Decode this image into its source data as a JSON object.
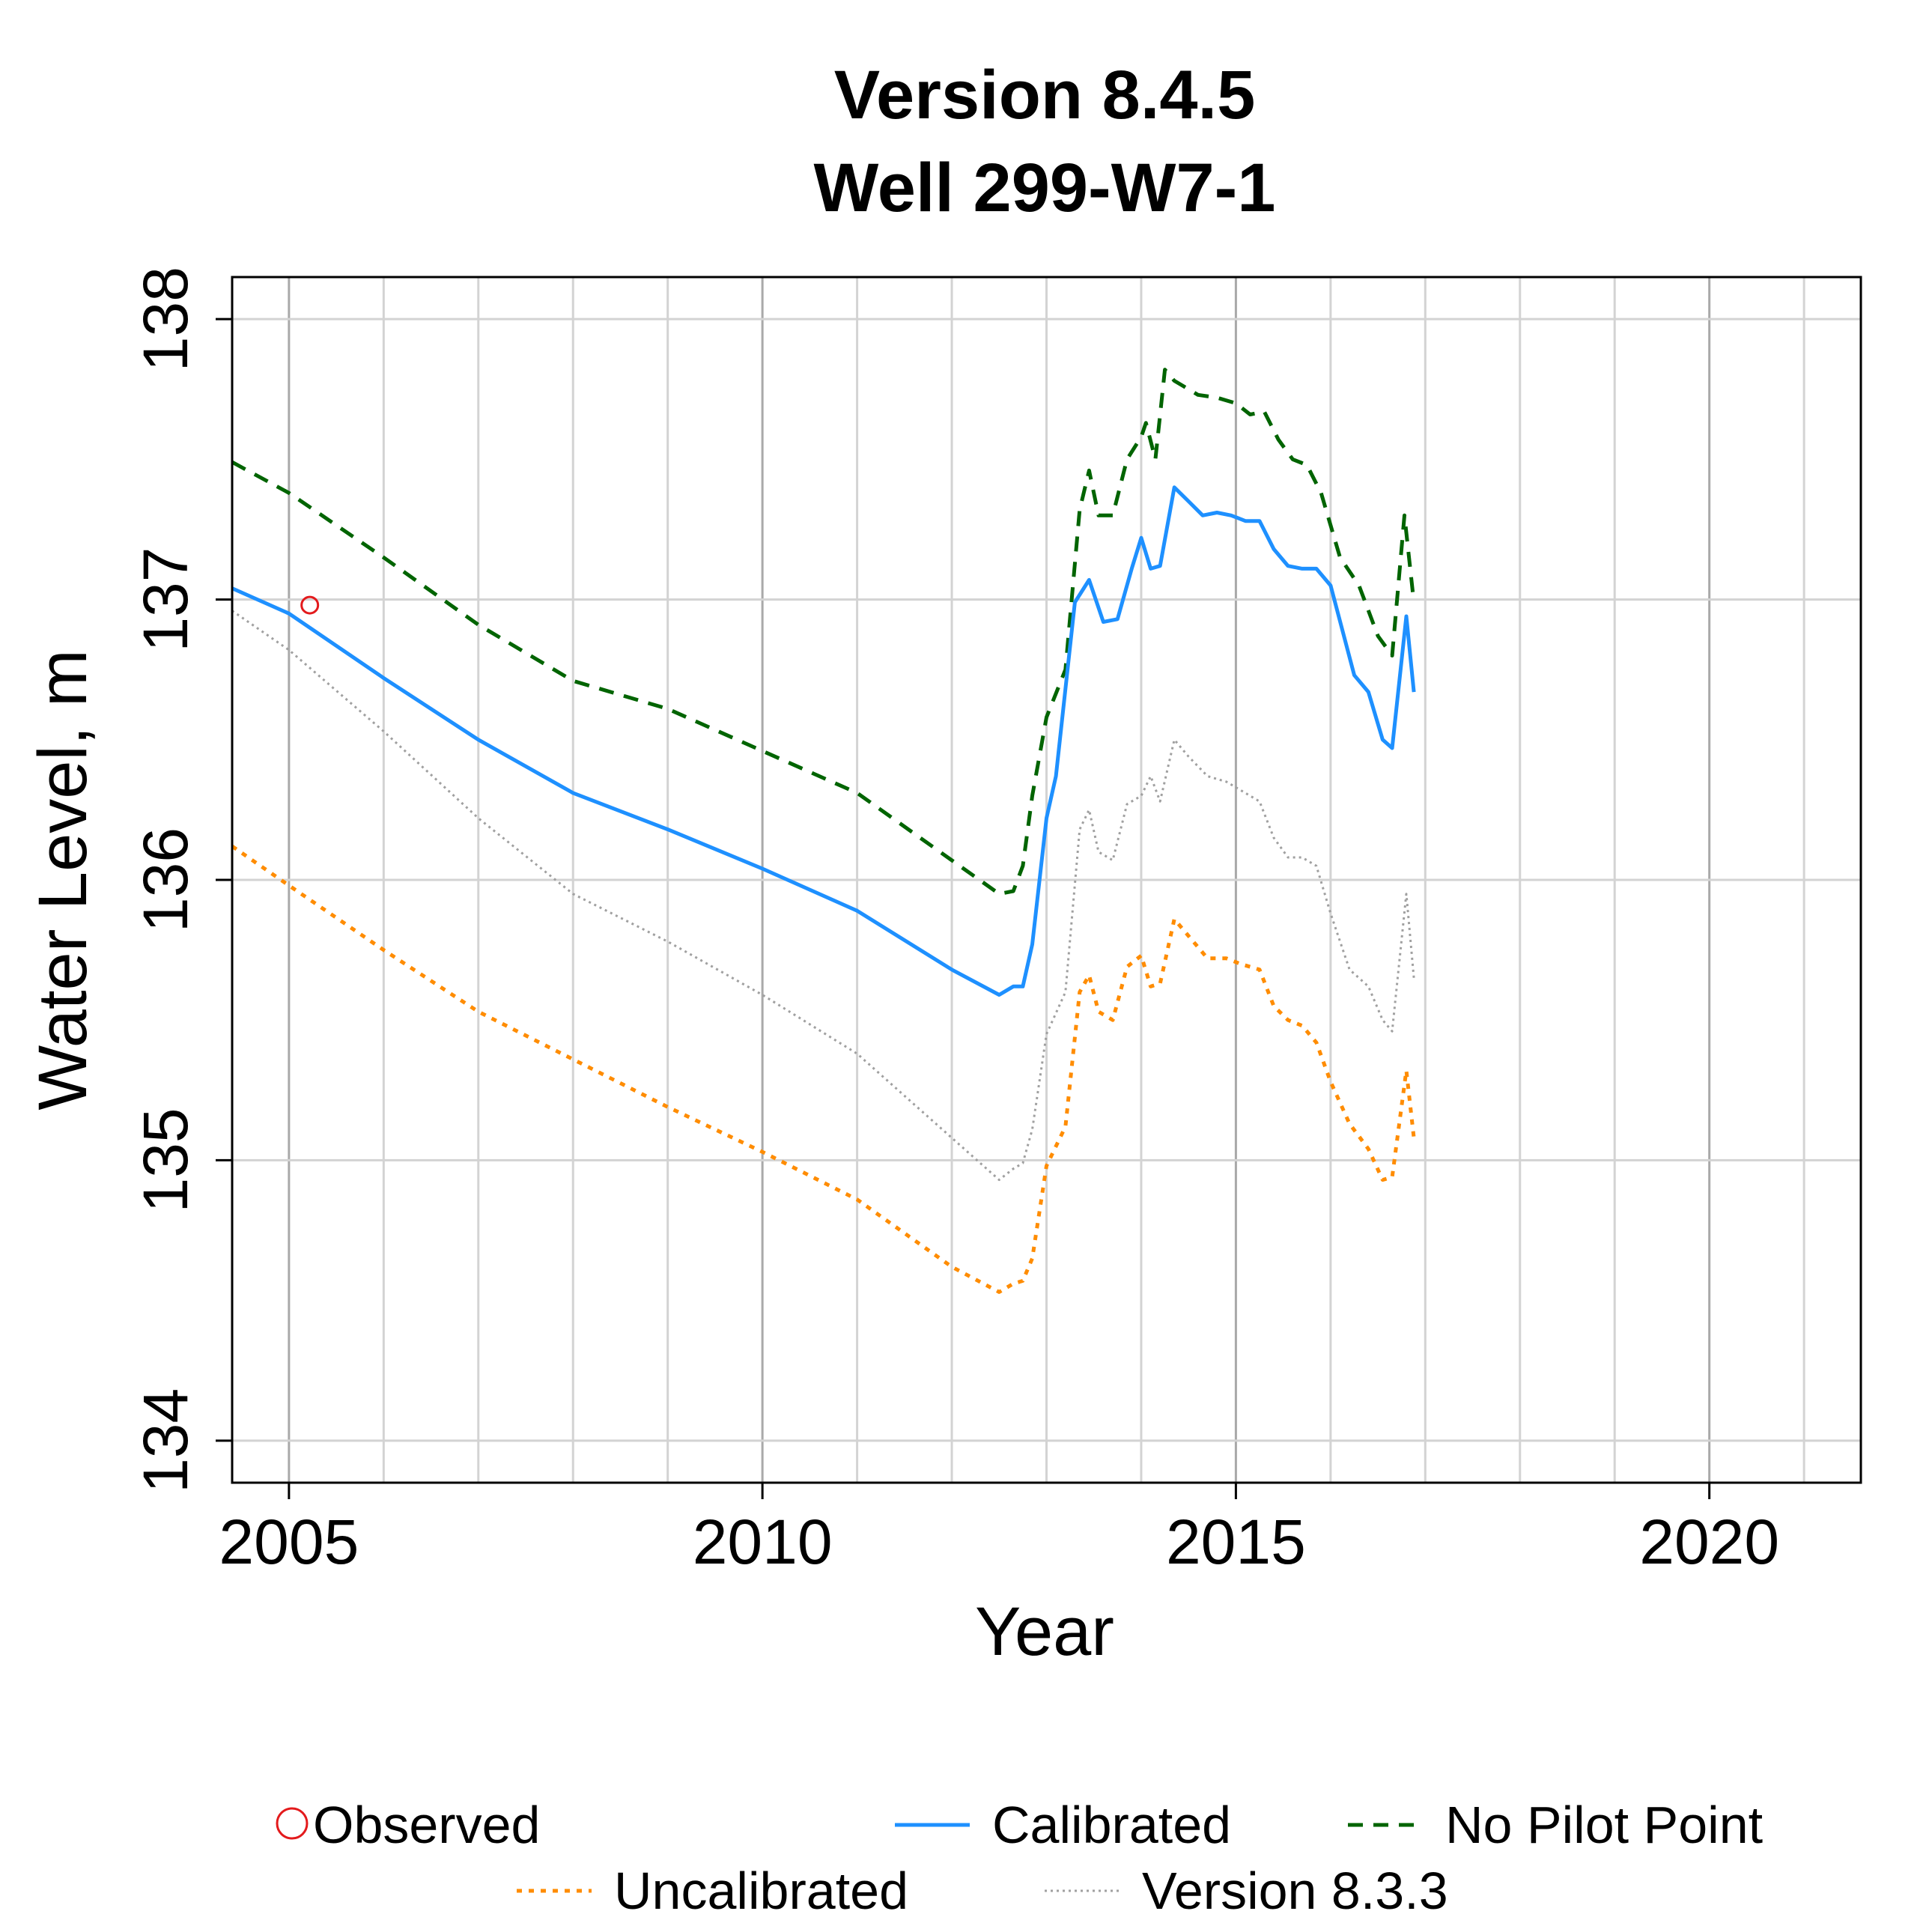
{
  "chart_data": {
    "type": "line",
    "title": "Version 8.4.5",
    "subtitle": "Well 299-W7-1",
    "xlabel": "Year",
    "ylabel": "Water Level, m",
    "xlim": [
      2004.4,
      2021.6
    ],
    "ylim": [
      133.85,
      138.15
    ],
    "x_ticks": [
      2005,
      2010,
      2015,
      2020
    ],
    "x_tick_labels": [
      "2005",
      "2010",
      "2015",
      "2020"
    ],
    "y_ticks": [
      134,
      135,
      136,
      137,
      138
    ],
    "y_tick_labels": [
      "134",
      "135",
      "136",
      "137",
      "138"
    ],
    "x_minor_grid": [
      2006,
      2007,
      2008,
      2009,
      2011,
      2012,
      2013,
      2014,
      2016,
      2017,
      2018,
      2019,
      2021
    ],
    "grid": true,
    "legend_position": "bottom",
    "colors": {
      "observed": "#e31a1c",
      "calibrated": "#1e90ff",
      "no_pilot_point": "#006400",
      "uncalibrated": "#ff8c00",
      "version_833": "#a0a0a0"
    },
    "legend": [
      {
        "key": "observed",
        "label": "Observed",
        "style": "circle"
      },
      {
        "key": "calibrated",
        "label": "Calibrated",
        "style": "solid"
      },
      {
        "key": "no_pilot_point",
        "label": "No Pilot Point",
        "style": "dashed"
      },
      {
        "key": "uncalibrated",
        "label": "Uncalibrated",
        "style": "dotted"
      },
      {
        "key": "version_833",
        "label": "Version 8.3.3",
        "style": "fine-dotted"
      }
    ],
    "observed": [
      {
        "x": 2005.22,
        "y": 136.98
      }
    ],
    "series": [
      {
        "key": "calibrated",
        "x": [
          2004.4,
          2005.0,
          2006.0,
          2007.0,
          2008.0,
          2009.0,
          2010.0,
          2011.0,
          2012.0,
          2012.5,
          2012.65,
          2012.75,
          2012.85,
          2013.0,
          2013.1,
          2013.3,
          2013.45,
          2013.6,
          2013.75,
          2013.9,
          2014.0,
          2014.1,
          2014.2,
          2014.35,
          2014.5,
          2014.65,
          2014.8,
          2014.95,
          2015.1,
          2015.25,
          2015.4,
          2015.55,
          2015.7,
          2015.85,
          2016.0,
          2016.25,
          2016.4,
          2016.55,
          2016.65,
          2016.8,
          2016.88
        ],
        "y": [
          137.04,
          136.95,
          136.72,
          136.5,
          136.31,
          136.18,
          136.04,
          135.89,
          135.68,
          135.59,
          135.62,
          135.62,
          135.77,
          136.22,
          136.37,
          136.99,
          137.07,
          136.92,
          136.93,
          137.11,
          137.22,
          137.11,
          137.12,
          137.4,
          137.35,
          137.3,
          137.31,
          137.3,
          137.28,
          137.28,
          137.18,
          137.12,
          137.11,
          137.11,
          137.05,
          136.73,
          136.67,
          136.5,
          136.47,
          136.94,
          136.67
        ]
      },
      {
        "key": "no_pilot_point",
        "x": [
          2004.4,
          2005.0,
          2006.0,
          2007.0,
          2008.0,
          2009.0,
          2010.0,
          2011.0,
          2012.0,
          2012.5,
          2012.65,
          2012.75,
          2012.85,
          2013.0,
          2013.2,
          2013.35,
          2013.45,
          2013.55,
          2013.7,
          2013.85,
          2014.0,
          2014.05,
          2014.15,
          2014.25,
          2014.35,
          2014.45,
          2014.6,
          2014.8,
          2015.0,
          2015.15,
          2015.3,
          2015.45,
          2015.6,
          2015.75,
          2015.9,
          2016.1,
          2016.3,
          2016.5,
          2016.65,
          2016.78,
          2016.88
        ],
        "y": [
          137.49,
          137.38,
          137.15,
          136.91,
          136.71,
          136.61,
          136.46,
          136.31,
          136.07,
          135.95,
          135.96,
          136.05,
          136.3,
          136.58,
          136.75,
          137.32,
          137.46,
          137.3,
          137.3,
          137.5,
          137.58,
          137.63,
          137.5,
          137.82,
          137.78,
          137.76,
          137.73,
          137.72,
          137.7,
          137.66,
          137.67,
          137.57,
          137.5,
          137.48,
          137.38,
          137.15,
          137.05,
          136.87,
          136.8,
          137.3,
          136.99
        ]
      },
      {
        "key": "uncalibrated",
        "x": [
          2004.4,
          2005.0,
          2006.0,
          2007.0,
          2008.0,
          2009.0,
          2010.0,
          2011.0,
          2012.0,
          2012.5,
          2012.65,
          2012.75,
          2012.85,
          2013.0,
          2013.2,
          2013.35,
          2013.45,
          2013.55,
          2013.7,
          2013.85,
          2014.0,
          2014.1,
          2014.2,
          2014.35,
          2014.5,
          2014.7,
          2014.9,
          2015.05,
          2015.25,
          2015.4,
          2015.55,
          2015.7,
          2015.85,
          2016.0,
          2016.2,
          2016.4,
          2016.55,
          2016.65,
          2016.8,
          2016.88
        ],
        "y": [
          136.12,
          135.98,
          135.75,
          135.53,
          135.36,
          135.19,
          135.03,
          134.86,
          134.62,
          134.53,
          134.56,
          134.57,
          134.65,
          134.98,
          135.12,
          135.6,
          135.66,
          135.53,
          135.5,
          135.69,
          135.73,
          135.62,
          135.63,
          135.86,
          135.8,
          135.72,
          135.72,
          135.7,
          135.68,
          135.55,
          135.5,
          135.48,
          135.42,
          135.28,
          135.13,
          135.04,
          134.93,
          134.94,
          135.32,
          135.08
        ]
      },
      {
        "key": "version_833",
        "x": [
          2004.4,
          2005.0,
          2006.0,
          2007.0,
          2008.0,
          2009.0,
          2010.0,
          2011.0,
          2012.0,
          2012.5,
          2012.65,
          2012.75,
          2012.85,
          2013.0,
          2013.2,
          2013.35,
          2013.45,
          2013.55,
          2013.7,
          2013.85,
          2014.0,
          2014.1,
          2014.2,
          2014.35,
          2014.5,
          2014.7,
          2014.9,
          2015.05,
          2015.25,
          2015.4,
          2015.55,
          2015.7,
          2015.85,
          2016.0,
          2016.2,
          2016.4,
          2016.55,
          2016.65,
          2016.8,
          2016.88
        ],
        "y": [
          136.96,
          136.82,
          136.53,
          136.22,
          135.95,
          135.78,
          135.59,
          135.38,
          135.08,
          134.93,
          134.97,
          134.99,
          135.11,
          135.45,
          135.6,
          136.18,
          136.25,
          136.1,
          136.07,
          136.27,
          136.3,
          136.37,
          136.28,
          136.5,
          136.44,
          136.37,
          136.35,
          136.32,
          136.28,
          136.15,
          136.08,
          136.08,
          136.05,
          135.88,
          135.68,
          135.62,
          135.5,
          135.46,
          135.95,
          135.65
        ]
      }
    ]
  }
}
